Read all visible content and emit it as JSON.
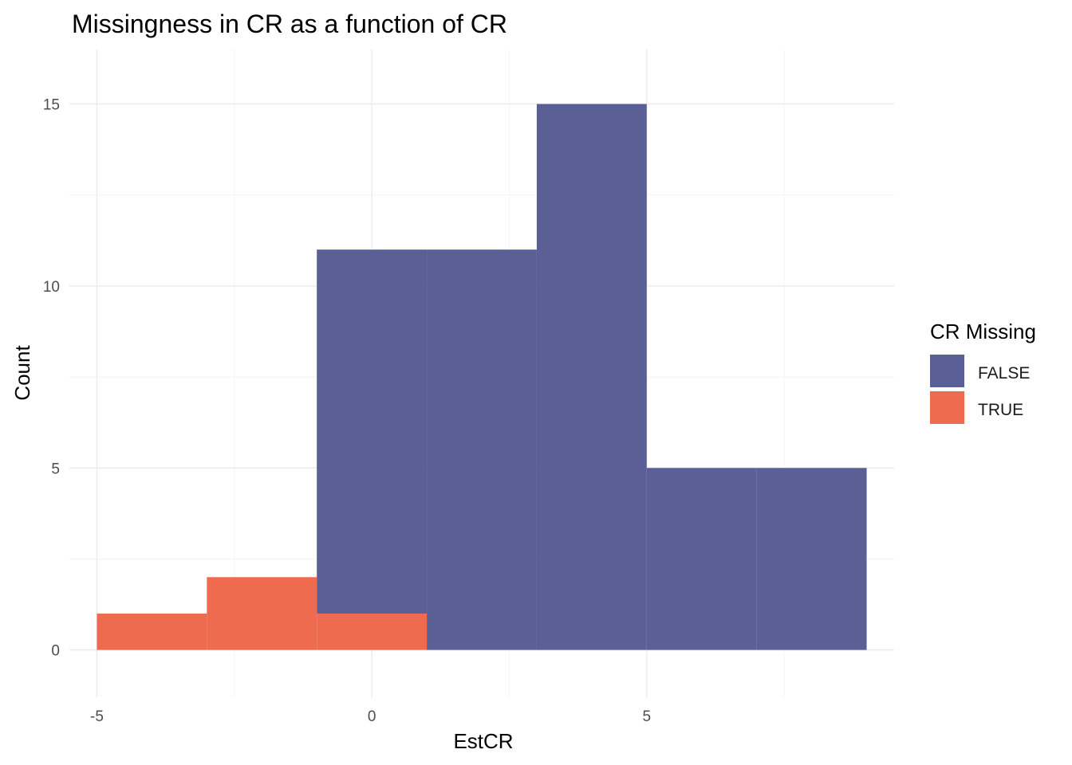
{
  "chart_data": {
    "type": "bar",
    "title": "Missingness in CR as a function of CR",
    "xlabel": "EstCR",
    "ylabel": "Count",
    "xlim": [
      -5.5,
      9.5
    ],
    "ylim": [
      -1.3,
      16.5
    ],
    "x_ticks": [
      -5,
      0,
      5
    ],
    "x_tick_labels": [
      "-5",
      "0",
      "5"
    ],
    "x_minor_ticks": [
      -2.5,
      2.5,
      7.5
    ],
    "y_ticks": [
      0,
      5,
      10,
      15
    ],
    "y_tick_labels": [
      "0",
      "5",
      "10",
      "15"
    ],
    "y_minor_ticks": [
      2.5,
      7.5,
      12.5
    ],
    "grid": true,
    "legend": {
      "title": "CR Missing",
      "position": "right",
      "entries": [
        "FALSE",
        "TRUE"
      ]
    },
    "colors": {
      "FALSE": "#5a5f96",
      "TRUE": "#ef6b4f"
    },
    "bin_width": 2,
    "series": [
      {
        "name": "FALSE",
        "bins": [
          {
            "x0": -1,
            "x1": 1,
            "count": 10
          },
          {
            "x0": 1,
            "x1": 3,
            "count": 11
          },
          {
            "x0": 3,
            "x1": 5,
            "count": 15
          },
          {
            "x0": 5,
            "x1": 7,
            "count": 5
          },
          {
            "x0": 7,
            "x1": 9,
            "count": 5
          }
        ]
      },
      {
        "name": "TRUE",
        "bins": [
          {
            "x0": -5,
            "x1": -3,
            "count": 1
          },
          {
            "x0": -3,
            "x1": -1,
            "count": 2
          },
          {
            "x0": -1,
            "x1": 1,
            "count": 1
          }
        ]
      }
    ]
  }
}
